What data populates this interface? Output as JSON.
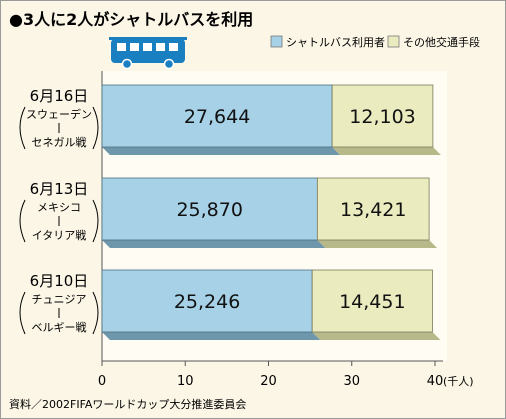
{
  "title": "●3人に2人がシャトルバスを利用",
  "source": "資料／2002FIFAワールドカップ大分推進委員会",
  "colors": {
    "shuttle": "#a6d1e6",
    "shuttle_side": "#6f97ac",
    "other": "#eaecbf",
    "other_side": "#b8b98a",
    "bus": "#1a7fc1",
    "background": "#fbf6e6"
  },
  "legend": [
    {
      "label": "シャトルバス利用者",
      "color": "#a6d1e6"
    },
    {
      "label": "その他交通手段",
      "color": "#eaecbf"
    }
  ],
  "chart_data": {
    "type": "bar",
    "orientation": "horizontal",
    "stacked": true,
    "unit": "千人",
    "categories": [
      {
        "date": "6月16日",
        "team1": "スウェーデン",
        "team2": "セネガル戦"
      },
      {
        "date": "6月13日",
        "team1": "メキシコ",
        "team2": "イタリア戦"
      },
      {
        "date": "6月10日",
        "team1": "チュニジア",
        "team2": "ベルギー戦"
      }
    ],
    "series": [
      {
        "name": "シャトルバス利用者",
        "values": [
          27644,
          25870,
          25246
        ],
        "labels": [
          "27,644",
          "25,870",
          "25,246"
        ]
      },
      {
        "name": "その他交通手段",
        "values": [
          12103,
          13421,
          14451
        ],
        "labels": [
          "12,103",
          "13,421",
          "14,451"
        ]
      }
    ],
    "xlim": [
      0,
      40000
    ],
    "ticks": [
      0,
      10,
      20,
      30,
      40
    ],
    "tick_labels": [
      "0",
      "10",
      "20",
      "30",
      "40"
    ],
    "tick_unit_label": "(千人)",
    "grid": false,
    "legend_position": "top-right"
  }
}
